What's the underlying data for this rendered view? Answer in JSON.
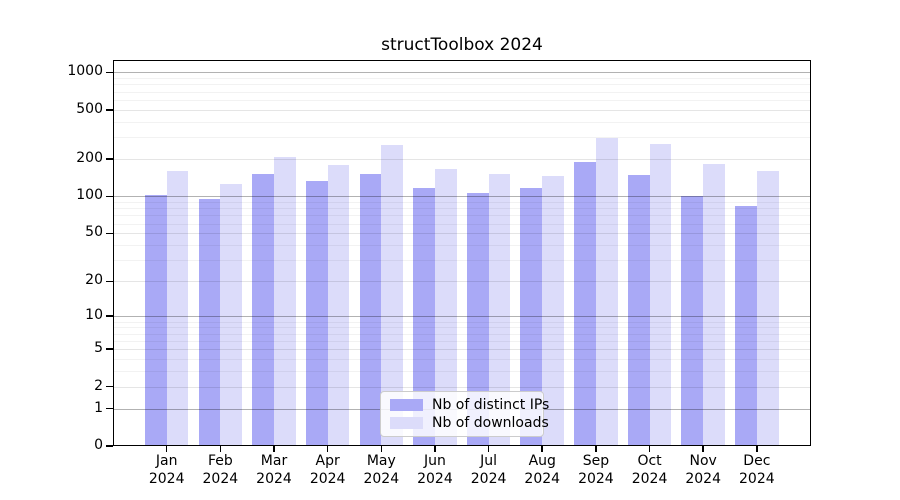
{
  "chart_data": {
    "type": "bar",
    "title": "structToolbox 2024",
    "categories": [
      "Jan",
      "Feb",
      "Mar",
      "Apr",
      "May",
      "Jun",
      "Jul",
      "Aug",
      "Sep",
      "Oct",
      "Nov",
      "Dec"
    ],
    "year": "2024",
    "series": [
      {
        "name": "Nb of distinct IPs",
        "color": "#a9a9f6",
        "values": [
          102,
          96,
          152,
          134,
          152,
          118,
          106,
          116,
          191,
          149,
          100,
          83
        ]
      },
      {
        "name": "Nb of downloads",
        "color": "#dcdcfa",
        "values": [
          160,
          126,
          208,
          180,
          260,
          168,
          151,
          146,
          295,
          267,
          184,
          161
        ]
      }
    ],
    "yscale": "log1p",
    "ylim": [
      0,
      1070
    ],
    "yticks": [
      0,
      1,
      2,
      5,
      10,
      20,
      50,
      100,
      200,
      500,
      1000
    ],
    "decade_ticks": [
      1,
      10,
      100,
      1000
    ],
    "minor_gridlines": [
      3,
      4,
      6,
      7,
      8,
      9,
      30,
      40,
      60,
      70,
      80,
      90,
      300,
      400,
      600,
      700,
      800,
      900
    ],
    "grid": true,
    "legend_position": "lower center",
    "colors": {
      "decade_gridline": "rgba(0,0,0,0.30)",
      "major_gridline": "rgba(0,0,0,0.10)",
      "minor_gridline": "rgba(0,0,0,0.05)",
      "spine": "#000000",
      "background": "#ffffff"
    }
  }
}
